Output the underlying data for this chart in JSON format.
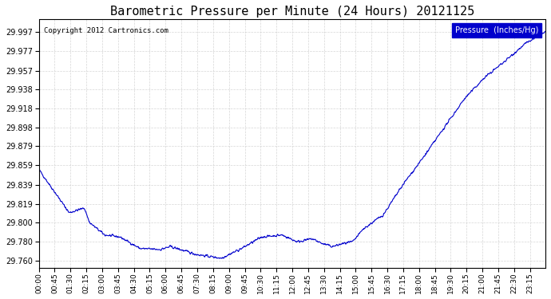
{
  "title": "Barometric Pressure per Minute (24 Hours) 20121125",
  "copyright_text": "Copyright 2012 Cartronics.com",
  "legend_label": "Pressure  (Inches/Hg)",
  "line_color": "#0000cc",
  "background_color": "#ffffff",
  "grid_color": "#cccccc",
  "yticks": [
    29.76,
    29.78,
    29.8,
    29.819,
    29.839,
    29.859,
    29.879,
    29.898,
    29.918,
    29.938,
    29.957,
    29.977,
    29.997
  ],
  "ylim": [
    29.753,
    30.01
  ],
  "xtick_labels": [
    "00:00",
    "00:45",
    "01:30",
    "02:15",
    "03:00",
    "03:45",
    "04:30",
    "05:15",
    "06:00",
    "06:45",
    "07:30",
    "08:15",
    "09:00",
    "09:45",
    "10:30",
    "11:15",
    "12:00",
    "12:45",
    "13:30",
    "14:15",
    "15:00",
    "15:45",
    "16:30",
    "17:15",
    "18:00",
    "18:45",
    "19:30",
    "20:15",
    "21:00",
    "21:45",
    "22:30",
    "23:15"
  ],
  "num_points": 1440,
  "key_t": [
    0.0,
    0.02,
    0.06,
    0.09,
    0.1,
    0.13,
    0.16,
    0.2,
    0.24,
    0.26,
    0.31,
    0.36,
    0.38,
    0.4,
    0.44,
    0.48,
    0.51,
    0.54,
    0.56,
    0.58,
    0.6,
    0.62,
    0.64,
    0.68,
    0.72,
    0.76,
    0.8,
    0.84,
    0.88,
    0.92,
    0.96,
    1.0
  ],
  "key_v": [
    29.855,
    29.84,
    29.81,
    29.815,
    29.8,
    29.787,
    29.785,
    29.773,
    29.772,
    29.775,
    29.767,
    29.763,
    29.768,
    29.773,
    29.785,
    29.787,
    29.78,
    29.783,
    29.778,
    29.775,
    29.778,
    29.78,
    29.793,
    29.808,
    29.84,
    29.868,
    29.898,
    29.928,
    29.95,
    29.967,
    29.985,
    29.997
  ],
  "noise_std": 0.001,
  "random_seed": 42,
  "smooth_size": 3
}
